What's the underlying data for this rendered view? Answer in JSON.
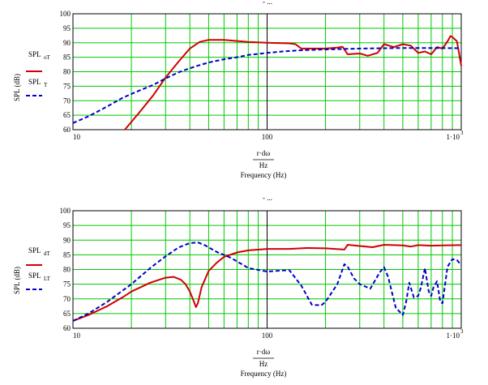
{
  "chart_data": [
    {
      "type": "line",
      "top_note": "- ...",
      "xscale": "log",
      "xlim": [
        10,
        1000
      ],
      "ylim": [
        60,
        100
      ],
      "y_ticks": [
        "60",
        "65",
        "70",
        "75",
        "80",
        "85",
        "90",
        "95",
        "100"
      ],
      "x_ticks": [
        {
          "value": 10,
          "label": "10"
        },
        {
          "value": 100,
          "label": "100"
        },
        {
          "value": 1000,
          "label": "1·10",
          "exp": "3"
        }
      ],
      "grid": true,
      "xlabel_top": "r·dω",
      "xlabel_frac": "Hz",
      "xlabel_main": "Frequency (Hz)",
      "legend": [
        {
          "main": "SPL",
          "sub": "oT",
          "color": "#d00000",
          "dash": "solid"
        },
        {
          "main": "SPL",
          "sub": "T",
          "color": "#0000c8",
          "dash": "dashed"
        }
      ],
      "ylabel": "SPL (dB)",
      "series": [
        {
          "color": "#d00000",
          "x": [
            18.5,
            22,
            26,
            30,
            35,
            40,
            45,
            50,
            60,
            80,
            100,
            130,
            140,
            150,
            200,
            230,
            245,
            260,
            300,
            330,
            370,
            400,
            450,
            500,
            550,
            600,
            650,
            700,
            750,
            800,
            850,
            880,
            900,
            950,
            1000
          ],
          "y": [
            60,
            66,
            72,
            78,
            83.5,
            88,
            90.3,
            91,
            91,
            90.3,
            90,
            89.8,
            89.5,
            88,
            88,
            88.3,
            88.6,
            86,
            86.3,
            85.5,
            86.5,
            89.5,
            88.5,
            89.5,
            89,
            86.5,
            87,
            86,
            88.5,
            88,
            90.5,
            92.3,
            92,
            90.5,
            82
          ]
        },
        {
          "color": "#0000c8",
          "x": [
            10,
            12,
            15,
            18,
            22,
            26,
            30,
            35,
            40,
            45,
            50,
            60,
            70,
            80,
            100,
            120,
            150,
            200,
            300,
            400,
            500,
            700,
            1000
          ],
          "y": [
            62.3,
            64.6,
            68,
            71,
            73.5,
            75.5,
            77.7,
            79.8,
            81.2,
            82.3,
            83.2,
            84.3,
            85,
            85.8,
            86.5,
            87,
            87.4,
            87.7,
            88,
            88.1,
            88.2,
            88.2,
            88.1
          ]
        }
      ]
    },
    {
      "type": "line",
      "top_note": "- ...",
      "xscale": "log",
      "xlim": [
        10,
        1000
      ],
      "ylim": [
        60,
        100
      ],
      "y_ticks": [
        "60",
        "65",
        "70",
        "75",
        "80",
        "85",
        "90",
        "95",
        "100"
      ],
      "x_ticks": [
        {
          "value": 10,
          "label": "10"
        },
        {
          "value": 100,
          "label": "100"
        },
        {
          "value": 1000,
          "label": "1·10",
          "exp": "3"
        }
      ],
      "grid": true,
      "xlabel_top": "r·dω",
      "xlabel_frac": "Hz",
      "xlabel_main": "Frequency (Hz)",
      "legend": [
        {
          "main": "SPL",
          "sub": "dT",
          "color": "#d00000",
          "dash": "solid"
        },
        {
          "main": "SPL",
          "sub": "LT",
          "color": "#0000c8",
          "dash": "dashed"
        }
      ],
      "ylabel": "SPL (dB)",
      "series": [
        {
          "color": "#d00000",
          "x": [
            10,
            12,
            15,
            18,
            20,
            25,
            30,
            33,
            36,
            38,
            40,
            42,
            43,
            44,
            46,
            50,
            55,
            60,
            70,
            80,
            100,
            130,
            160,
            200,
            250,
            260,
            300,
            350,
            400,
            500,
            550,
            600,
            700,
            800,
            1000
          ],
          "y": [
            62.5,
            64.5,
            67.5,
            70.5,
            72.5,
            75.5,
            77.2,
            77.5,
            76.5,
            75,
            72.5,
            69,
            67.2,
            68.5,
            74,
            79.5,
            82.3,
            84.3,
            85.8,
            86.5,
            87,
            87,
            87.3,
            87.2,
            86.8,
            88.4,
            88,
            87.6,
            88.4,
            88.2,
            87.8,
            88.3,
            88.1,
            88.2,
            88.3
          ]
        },
        {
          "color": "#0000c8",
          "x": [
            10,
            12,
            15,
            20,
            25,
            30,
            35,
            40,
            44,
            48,
            55,
            65,
            80,
            100,
            130,
            150,
            170,
            190,
            200,
            230,
            250,
            260,
            280,
            300,
            340,
            380,
            400,
            420,
            460,
            500,
            520,
            540,
            570,
            600,
            620,
            650,
            680,
            700,
            720,
            750,
            780,
            800,
            850,
            900,
            950,
            1000
          ],
          "y": [
            62.5,
            65,
            69,
            75,
            80.5,
            84.5,
            87.5,
            89,
            89.2,
            88.2,
            86,
            84,
            80.5,
            79.3,
            79.8,
            74.5,
            68,
            67.8,
            69,
            75,
            81.8,
            81,
            77,
            75,
            73.5,
            79,
            80.8,
            77.5,
            67,
            64.5,
            69,
            75.5,
            70.5,
            71,
            74,
            80.5,
            72.5,
            71,
            74,
            76,
            69,
            68.5,
            81,
            83.5,
            83.2,
            81.5
          ]
        }
      ]
    }
  ]
}
